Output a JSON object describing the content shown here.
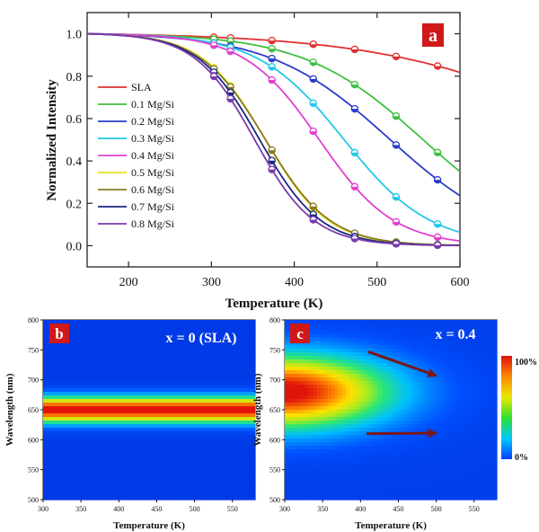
{
  "panel_a": {
    "badge": "a",
    "xlabel": "Temperature (K)",
    "ylabel": "Normalized Intensity",
    "xticks": [
      "200",
      "300",
      "400",
      "500",
      "600"
    ],
    "yticks": [
      "0.0",
      "0.2",
      "0.4",
      "0.6",
      "0.8",
      "1.0"
    ]
  },
  "panel_b": {
    "badge": "b",
    "title": "x = 0 (SLA)",
    "xlabel": "Temperature (K)",
    "ylabel": "Wavelength (nm)",
    "xticks": [
      "300",
      "350",
      "400",
      "450",
      "500",
      "550"
    ],
    "yticks": [
      "500",
      "550",
      "600",
      "650",
      "700",
      "750",
      "800"
    ]
  },
  "panel_c": {
    "badge": "c",
    "title": "x = 0.4",
    "xlabel": "Temperature (K)",
    "ylabel": "Wavelength (nm)",
    "xticks": [
      "300",
      "350",
      "400",
      "450",
      "500",
      "550"
    ],
    "yticks": [
      "500",
      "550",
      "600",
      "650",
      "700",
      "750",
      "800"
    ],
    "colorbar": {
      "max_label": "100%",
      "min_label": "0%"
    }
  },
  "chart_data": [
    {
      "type": "line",
      "xlabel": "Temperature (K)",
      "ylabel": "Normalized Intensity",
      "xlim": [
        150,
        600
      ],
      "ylim": [
        -0.1,
        1.1
      ],
      "marker_x": [
        303,
        323,
        373,
        423,
        473,
        523,
        573
      ],
      "series": [
        {
          "name": "SLA",
          "color": "#e03030",
          "t50": 790,
          "k": 130
        },
        {
          "name": "0.1 Mg/Si",
          "color": "#40c040",
          "t50": 555,
          "k": 72
        },
        {
          "name": "0.2 Mg/Si",
          "color": "#2a3cc8",
          "t50": 515,
          "k": 72
        },
        {
          "name": "0.3 Mg/Si",
          "color": "#20c8e8",
          "t50": 460,
          "k": 52
        },
        {
          "name": "0.4 Mg/Si",
          "color": "#e040d0",
          "t50": 430,
          "k": 45
        },
        {
          "name": "0.5 Mg/Si",
          "color": "#e8e020",
          "t50": 365,
          "k": 38
        },
        {
          "name": "0.6 Mg/Si",
          "color": "#8a7a20",
          "t50": 365,
          "k": 39
        },
        {
          "name": "0.7 Mg/Si",
          "color": "#1a2a80",
          "t50": 358,
          "k": 37
        },
        {
          "name": "0.8 Mg/Si",
          "color": "#7a3ab0",
          "t50": 352,
          "k": 36
        }
      ]
    },
    {
      "type": "heatmap",
      "title": "x = 0 (SLA)",
      "xlabel": "Temperature (K)",
      "ylabel": "Wavelength (nm)",
      "xlim": [
        300,
        580
      ],
      "ylim": [
        500,
        800
      ],
      "peak_wavelength": 650,
      "band_width": 22,
      "intensity": "flat across temperature"
    },
    {
      "type": "heatmap",
      "title": "x = 0.4",
      "xlabel": "Temperature (K)",
      "ylabel": "Wavelength (nm)",
      "xlim": [
        300,
        580
      ],
      "ylim": [
        500,
        800
      ],
      "peak_wavelength": 680,
      "intensity": "decreases with temperature",
      "colorbar": [
        "0%",
        "100%"
      ],
      "arrows": [
        {
          "from": [
            410,
            747
          ],
          "to": [
            500,
            707
          ]
        },
        {
          "from": [
            408,
            610
          ],
          "to": [
            500,
            611
          ]
        }
      ]
    }
  ]
}
